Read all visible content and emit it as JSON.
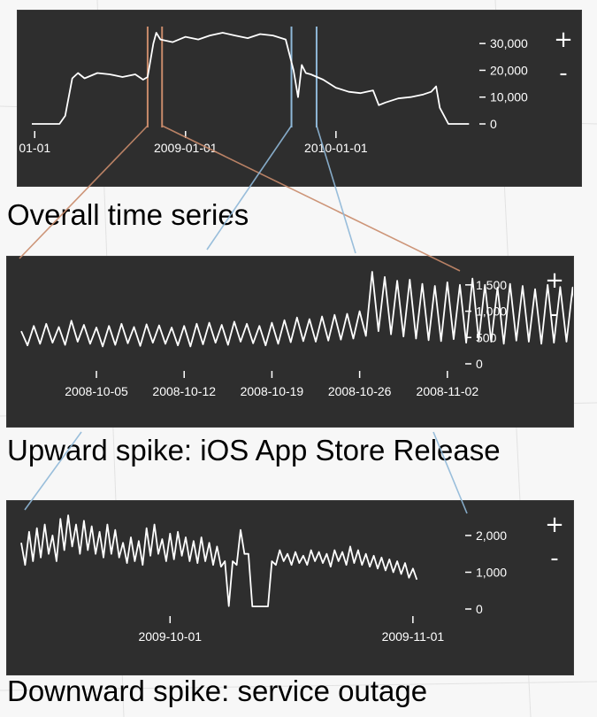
{
  "colors": {
    "panel_bg": "#2e2e2e",
    "line": "#ffffff",
    "axis_text": "#ffffff",
    "upward_connector": "#c98b6b",
    "downward_connector": "#8fb8d8",
    "caption": "#000000"
  },
  "controls": {
    "zoom_in": "+",
    "zoom_out": "-"
  },
  "captions": {
    "overall": "Overall time series",
    "upward": "Upward spike: iOS App Store Release",
    "downward": "Downward spike: service outage"
  },
  "chart_data": [
    {
      "type": "line",
      "title": "Overall time series",
      "x_type": "date",
      "x_range": [
        "2007-12-25",
        "2010-11-30"
      ],
      "xticks": [
        "2008-01-01",
        "2009-01-01",
        "2010-01-01"
      ],
      "xtick_labels": [
        "01-01",
        "2009-01-01",
        "2010-01-01"
      ],
      "ylim": [
        0,
        35000
      ],
      "yticks": [
        0,
        10000,
        20000,
        30000
      ],
      "ytick_labels": [
        "0",
        "10,000",
        "20,000",
        "30,000"
      ],
      "highlights": [
        {
          "label": "Upward spike: iOS App Store Release",
          "start": "2008-10-01",
          "end": "2008-11-05",
          "color": "#c98b6b"
        },
        {
          "label": "Downward spike: service outage",
          "start": "2009-09-15",
          "end": "2009-11-15",
          "color": "#8fb8d8"
        }
      ],
      "series": [
        {
          "x": [
            "2007-12-25",
            "2008-02-01",
            "2008-03-01",
            "2008-03-15",
            "2008-04-01",
            "2008-04-15",
            "2008-05-01",
            "2008-06-01",
            "2008-07-01",
            "2008-08-01",
            "2008-09-01",
            "2008-09-20",
            "2008-10-01",
            "2008-10-15",
            "2008-10-22",
            "2008-11-01",
            "2008-12-01",
            "2009-01-01",
            "2009-02-01",
            "2009-03-01",
            "2009-04-01",
            "2009-05-01",
            "2009-06-01",
            "2009-07-01",
            "2009-08-01",
            "2009-09-01",
            "2009-09-20",
            "2009-10-01",
            "2009-10-10",
            "2009-10-20",
            "2009-11-01",
            "2009-12-01",
            "2010-01-01",
            "2010-02-01",
            "2010-03-01",
            "2010-04-01",
            "2010-04-15",
            "2010-05-01",
            "2010-06-01",
            "2010-07-01",
            "2010-08-01",
            "2010-08-20",
            "2010-09-01",
            "2010-09-10",
            "2010-10-01",
            "2010-11-20"
          ],
          "y": [
            0,
            0,
            0,
            3000,
            17000,
            19000,
            17000,
            19000,
            18500,
            17500,
            18500,
            16500,
            17500,
            30000,
            34000,
            31500,
            30500,
            32500,
            31500,
            33000,
            34000,
            33000,
            32000,
            33500,
            33000,
            31500,
            20000,
            10000,
            22000,
            19000,
            18500,
            16500,
            13500,
            12000,
            11500,
            12500,
            7000,
            8000,
            9500,
            10000,
            11000,
            12000,
            14000,
            6000,
            0,
            0
          ]
        }
      ]
    },
    {
      "type": "line",
      "title": "Upward spike: iOS App Store Release",
      "x_type": "date",
      "x_range": [
        "2008-09-29",
        "2008-11-03"
      ],
      "xticks": [
        "2008-10-05",
        "2008-10-12",
        "2008-10-19",
        "2008-10-26",
        "2008-11-02"
      ],
      "ylim": [
        0,
        1800
      ],
      "yticks": [
        0,
        500,
        1000,
        1500
      ],
      "ytick_labels": [
        "0",
        "500",
        "1,000",
        "1,500"
      ],
      "series": [
        {
          "x_start": "2008-09-29",
          "step_days": 0.5,
          "y": [
            620,
            350,
            720,
            380,
            760,
            400,
            700,
            360,
            820,
            420,
            740,
            380,
            690,
            330,
            720,
            360,
            760,
            390,
            700,
            340,
            750,
            400,
            730,
            380,
            690,
            350,
            720,
            330,
            760,
            370,
            780,
            400,
            740,
            360,
            800,
            420,
            760,
            390,
            720,
            350,
            780,
            380,
            830,
            410,
            880,
            430,
            850,
            420,
            900,
            440,
            930,
            460,
            950,
            480,
            1000,
            530,
            1750,
            620,
            1650,
            560,
            1580,
            520,
            1600,
            480,
            1520,
            450,
            1480,
            430,
            1550,
            470,
            1500,
            400,
            1620,
            450,
            1500,
            420,
            1450,
            380,
            1520,
            440,
            1480,
            420,
            1420,
            380,
            1500,
            400,
            1460,
            420,
            1450,
            380,
            1500,
            420,
            1520,
            440,
            1440,
            400,
            1380,
            360,
            1200,
            1050
          ]
        }
      ]
    },
    {
      "type": "line",
      "title": "Downward spike: service outage",
      "x_type": "date",
      "x_range": [
        "2009-09-12",
        "2009-11-07"
      ],
      "xticks": [
        "2009-10-01",
        "2009-11-01"
      ],
      "ylim": [
        0,
        2600
      ],
      "yticks": [
        0,
        1000,
        2000
      ],
      "ytick_labels": [
        "0",
        "1,000",
        "2,000"
      ],
      "series": [
        {
          "x_start": "2009-09-12",
          "step_days": 0.5,
          "y": [
            1800,
            1200,
            2100,
            1300,
            2200,
            1400,
            2300,
            1500,
            2000,
            1300,
            2450,
            1600,
            2550,
            1700,
            2300,
            1500,
            2400,
            1600,
            2250,
            1500,
            2100,
            1400,
            2300,
            1500,
            2150,
            1400,
            1800,
            1250,
            1950,
            1300,
            1850,
            1200,
            2200,
            1450,
            2300,
            1500,
            1900,
            1300,
            2050,
            1350,
            2100,
            1450,
            1950,
            1300,
            1850,
            1250,
            1950,
            1300,
            1800,
            1200,
            1700,
            1150,
            1300,
            80,
            1300,
            1200,
            2150,
            1500,
            1500,
            70,
            70,
            70,
            70,
            70,
            1300,
            1200,
            1600,
            1300,
            1500,
            1200,
            1550,
            1250,
            1450,
            1200,
            1600,
            1300,
            1550,
            1250,
            1500,
            1150,
            1600,
            1300,
            1550,
            1200,
            1700,
            1250,
            1600,
            1200,
            1500,
            1150,
            1450,
            1100,
            1400,
            1050,
            1350,
            1000,
            1300,
            950,
            1250,
            850,
            1100,
            800
          ]
        }
      ]
    }
  ]
}
